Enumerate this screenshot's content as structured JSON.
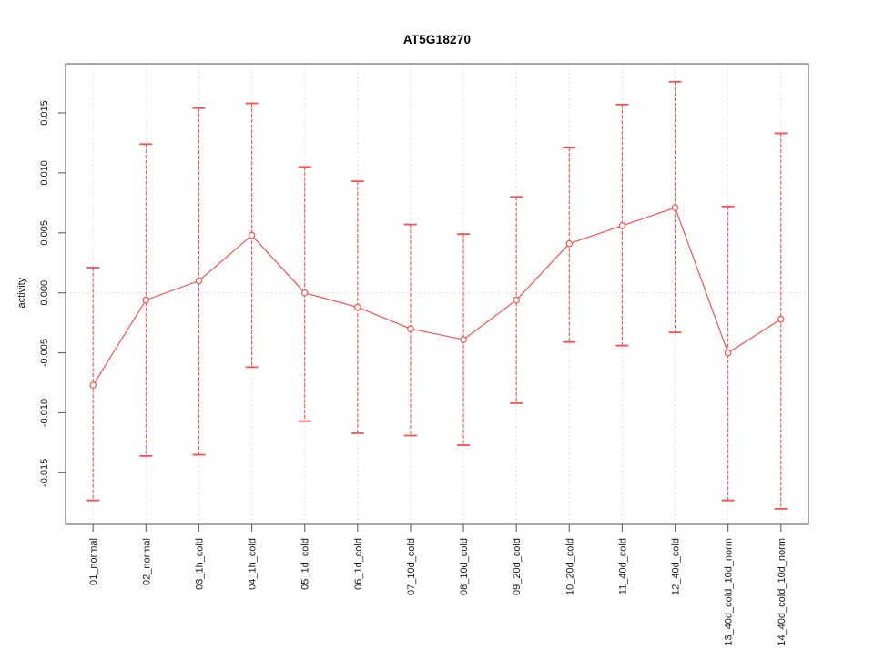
{
  "title": "AT5G18270",
  "chart_data": {
    "type": "line",
    "title": "AT5G18270",
    "xlabel": "",
    "ylabel": "activity",
    "categories": [
      "01_normal",
      "02_normal",
      "03_1h_cold",
      "04_1h_cold",
      "05_1d_cold",
      "06_1d_cold",
      "07_10d_cold",
      "08_10d_cold",
      "09_20d_cold",
      "10_20d_cold",
      "11_40d_cold",
      "12_40d_cold",
      "13_40d_cold_10d_norm",
      "14_40d_cold_10d_norm"
    ],
    "series": [
      {
        "name": "activity",
        "values": [
          -0.0077,
          -0.0006,
          0.001,
          0.0048,
          0.0,
          -0.0012,
          -0.003,
          -0.0039,
          -0.0006,
          0.0041,
          0.0056,
          0.0071,
          -0.005,
          -0.0022
        ],
        "upper": [
          0.0021,
          0.0124,
          0.0154,
          0.0158,
          0.0105,
          0.0093,
          0.0057,
          0.0049,
          0.008,
          0.0121,
          0.0157,
          0.0176,
          0.0072,
          0.0133
        ],
        "lower": [
          -0.0173,
          -0.0136,
          -0.0135,
          -0.0062,
          -0.0107,
          -0.0117,
          -0.0119,
          -0.0127,
          -0.0092,
          -0.0041,
          -0.0044,
          -0.0033,
          -0.0173,
          -0.018
        ]
      }
    ],
    "yticks": [
      -0.015,
      -0.01,
      -0.005,
      0.0,
      0.005,
      0.01,
      0.015
    ],
    "ytick_labels": [
      "-0.015",
      "-0.010",
      "-0.005",
      "0.000",
      "0.005",
      "0.010",
      "0.015"
    ],
    "ylim": [
      -0.0193,
      0.0191
    ],
    "grid": {
      "vertical_dotted": true,
      "zero_dotted_line": true
    },
    "legend": false,
    "marker": "open-circle",
    "colors": {
      "series": "#f8514d",
      "grid": "#d9d9d9",
      "axis": "#6e6e6e",
      "text": "#1a1a1a"
    }
  }
}
